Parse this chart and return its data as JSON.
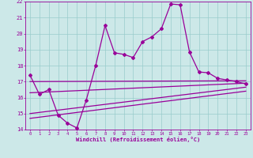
{
  "xlabel": "Windchill (Refroidissement éolien,°C)",
  "bg_color": "#cce8e8",
  "grid_color": "#99cccc",
  "line_color": "#990099",
  "xlim": [
    -0.5,
    23.5
  ],
  "ylim": [
    14,
    22
  ],
  "xticks": [
    0,
    1,
    2,
    3,
    4,
    5,
    6,
    7,
    8,
    9,
    10,
    11,
    12,
    13,
    14,
    15,
    16,
    17,
    18,
    19,
    20,
    21,
    22,
    23
  ],
  "yticks": [
    14,
    15,
    16,
    17,
    18,
    19,
    20,
    21,
    22
  ],
  "line1_x": [
    0,
    1,
    2,
    3,
    4,
    5,
    6,
    7,
    8,
    9,
    10,
    11,
    12,
    13,
    14,
    15,
    16,
    17,
    18,
    19,
    20,
    21,
    22,
    23
  ],
  "line1_y": [
    17.4,
    16.2,
    16.5,
    14.9,
    14.4,
    14.1,
    15.85,
    18.0,
    20.5,
    18.8,
    18.7,
    18.5,
    19.5,
    19.8,
    20.3,
    21.85,
    21.8,
    18.85,
    17.6,
    17.55,
    17.2,
    17.1,
    17.0,
    16.85
  ],
  "line2_x": [
    0,
    23
  ],
  "line2_y": [
    17.0,
    17.05
  ],
  "line3_x": [
    0,
    23
  ],
  "line3_y": [
    16.3,
    16.9
  ],
  "line4_x": [
    0,
    23
  ],
  "line4_y": [
    15.0,
    16.65
  ],
  "line5_x": [
    0,
    23
  ],
  "line5_y": [
    14.7,
    16.4
  ]
}
